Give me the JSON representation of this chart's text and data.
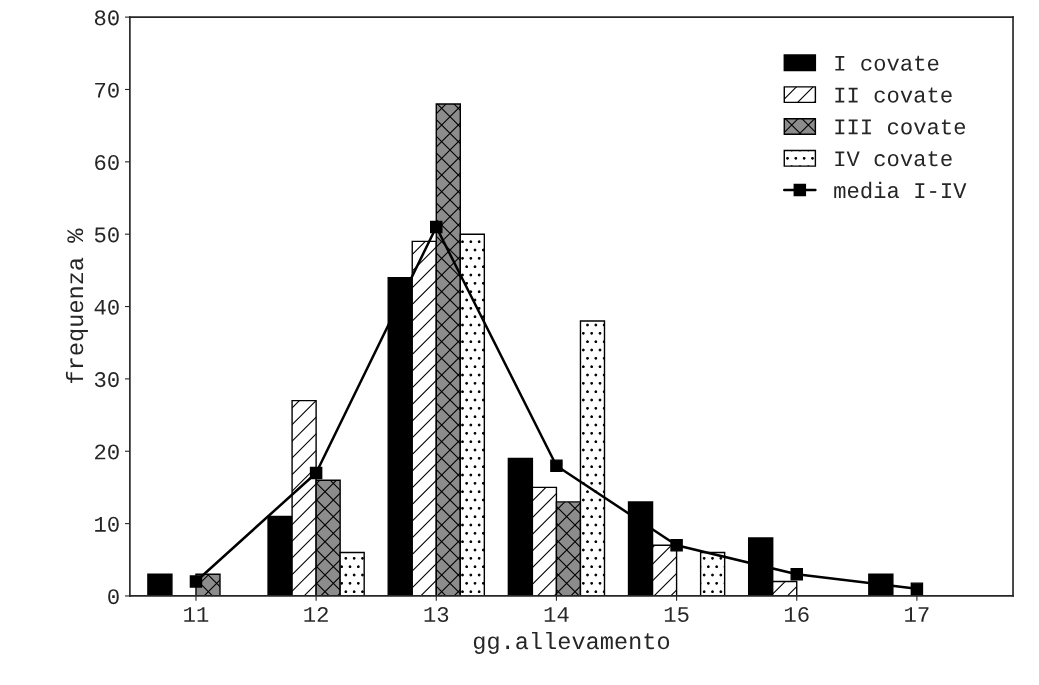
{
  "chart_data": {
    "type": "bar",
    "xlabel": "gg.allevamento",
    "ylabel": "frequenza %",
    "categories": [
      "11",
      "12",
      "13",
      "14",
      "15",
      "16",
      "17"
    ],
    "series": [
      {
        "name": "I covate",
        "color": "#000000",
        "values": [
          3,
          11,
          44,
          19,
          13,
          8,
          3
        ]
      },
      {
        "name": "II covate",
        "color": "#ffffff",
        "values": [
          0,
          27,
          49,
          15,
          7,
          2,
          0
        ]
      },
      {
        "name": "III covate",
        "color": "#8c8c8c",
        "values": [
          3,
          16,
          68,
          13,
          0,
          0,
          0
        ]
      },
      {
        "name": "IV covate",
        "color": "#ffffff",
        "values": [
          0,
          6,
          50,
          38,
          6,
          0,
          0
        ]
      },
      {
        "name": "media I-IV",
        "type": "line",
        "color": "#000000",
        "marker": "square",
        "values": [
          2,
          17,
          51,
          18,
          7,
          3,
          1
        ]
      }
    ],
    "ylim": [
      0,
      80
    ],
    "yticks": [
      0,
      10,
      20,
      30,
      40,
      50,
      60,
      70,
      80
    ],
    "grid": false,
    "legend": "top right"
  }
}
